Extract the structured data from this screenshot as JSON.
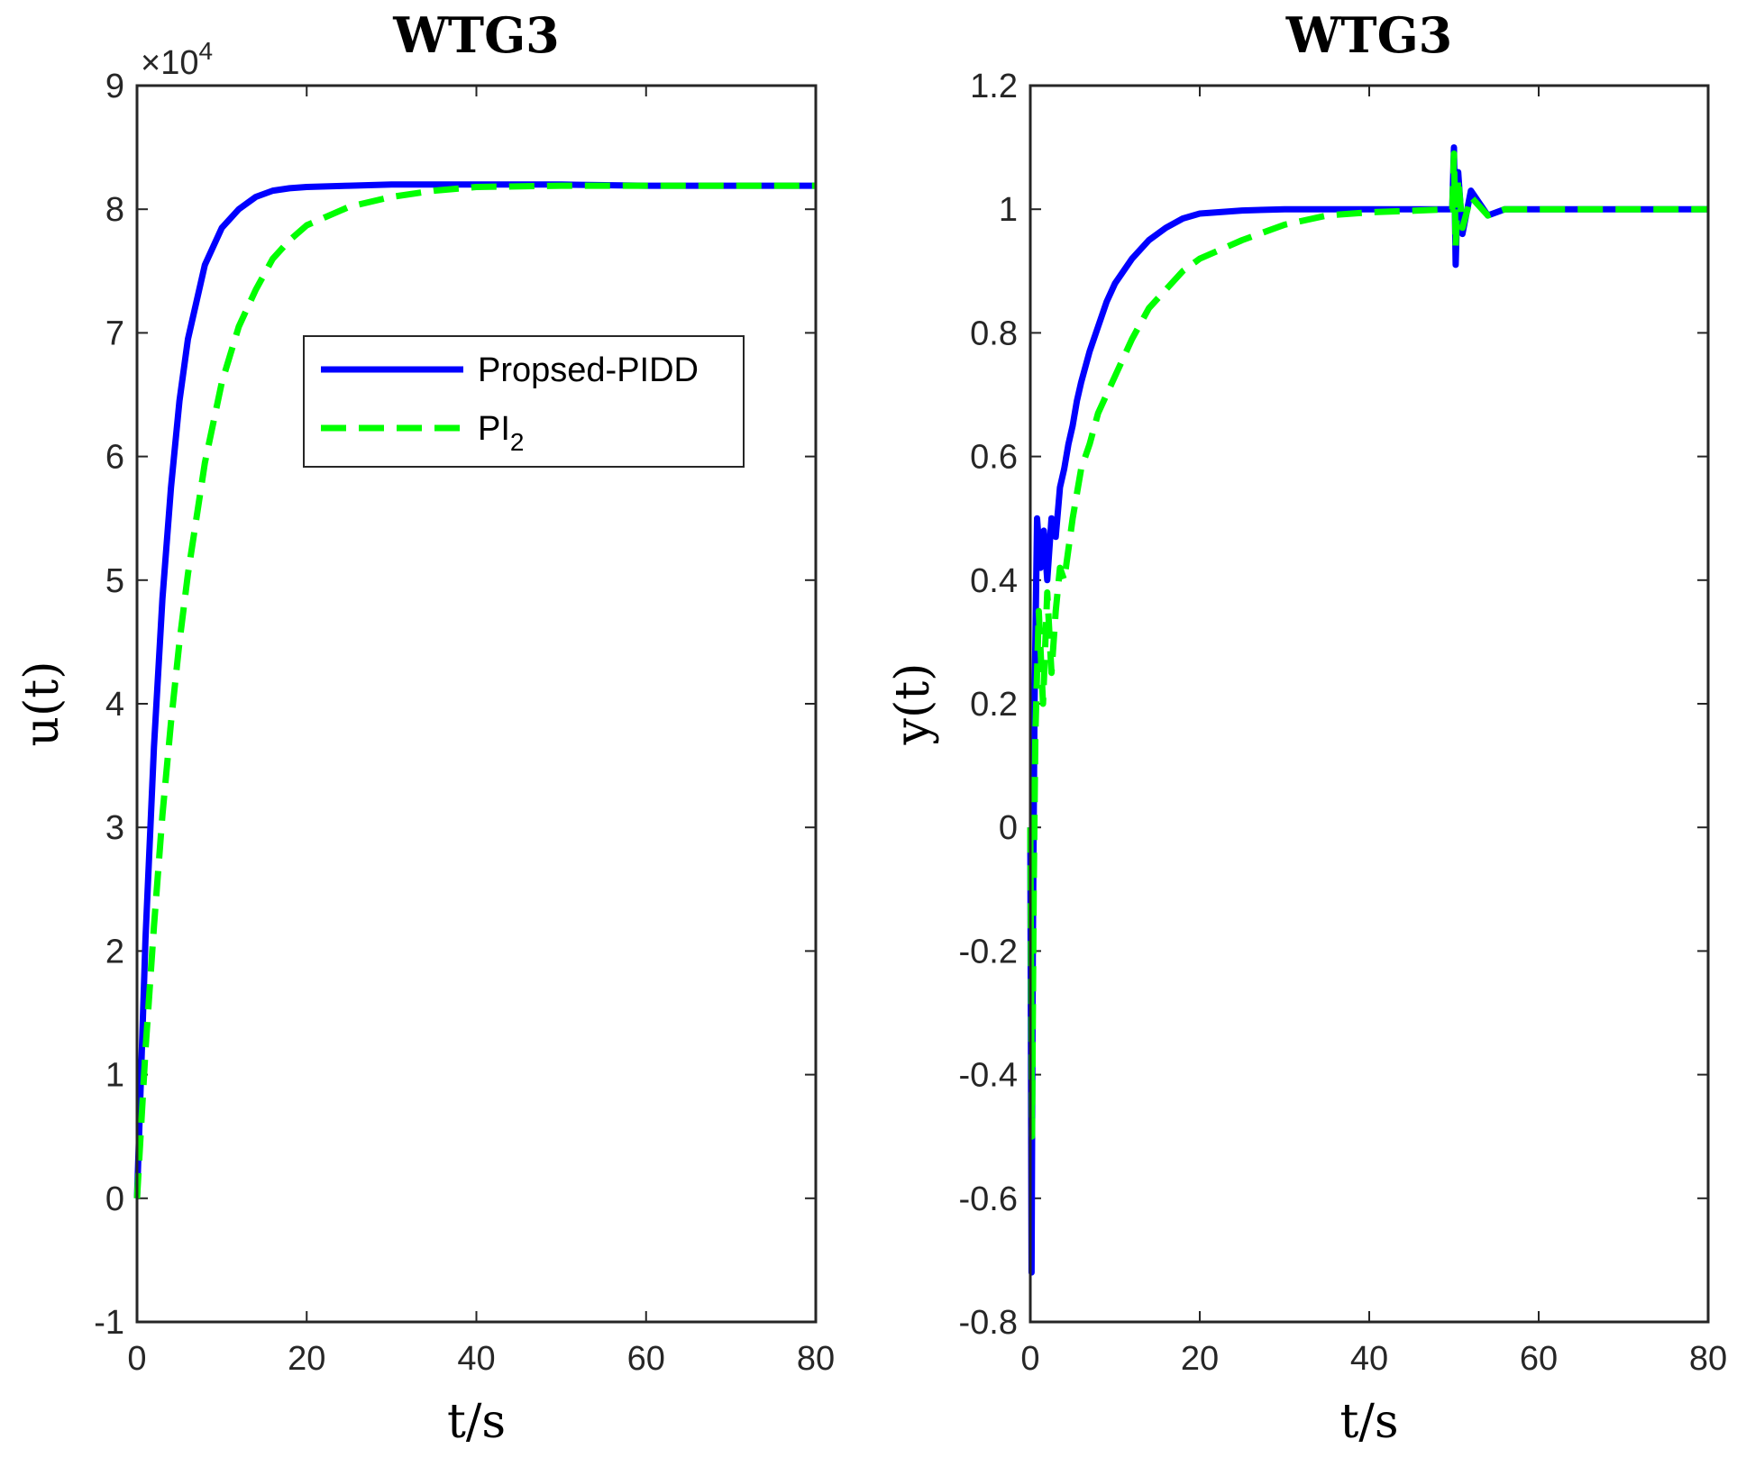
{
  "chart_data": [
    {
      "type": "line",
      "title": "WTG3",
      "xlabel": "t/s",
      "ylabel": "u(t)",
      "xlim": [
        0,
        80
      ],
      "ylim": [
        -1,
        9
      ],
      "xticks": [
        "0",
        "20",
        "40",
        "60",
        "80"
      ],
      "yticks": [
        "-1",
        "0",
        "1",
        "2",
        "3",
        "4",
        "5",
        "6",
        "7",
        "8",
        "9"
      ],
      "y_exponent_base": "×10",
      "y_exponent_power": "4",
      "legend": {
        "position": "center",
        "entries": [
          {
            "label": "Propsed-PIDD",
            "color": "#0000ff",
            "style": "solid"
          },
          {
            "label_main": "PI",
            "label_sub": "2",
            "color": "#00ff00",
            "style": "dashed"
          }
        ]
      },
      "series": [
        {
          "name": "Propsed-PIDD",
          "color": "#0000ff",
          "style": "solid",
          "x": [
            0,
            1,
            2,
            3,
            4,
            5,
            6,
            8,
            10,
            12,
            14,
            16,
            18,
            20,
            25,
            30,
            40,
            50,
            60,
            70,
            80
          ],
          "y": [
            0,
            2.1,
            3.65,
            4.85,
            5.75,
            6.45,
            6.95,
            7.55,
            7.85,
            8.0,
            8.1,
            8.15,
            8.17,
            8.18,
            8.19,
            8.2,
            8.2,
            8.2,
            8.19,
            8.19,
            8.19
          ]
        },
        {
          "name": "PI2",
          "color": "#00ff00",
          "style": "dashed",
          "x": [
            0,
            1,
            2,
            3,
            4,
            5,
            6,
            8,
            10,
            12,
            14,
            16,
            18,
            20,
            25,
            30,
            35,
            40,
            50,
            60,
            70,
            80
          ],
          "y": [
            0,
            1.2,
            2.2,
            3.1,
            3.85,
            4.5,
            5.05,
            5.95,
            6.6,
            7.05,
            7.35,
            7.6,
            7.75,
            7.87,
            8.02,
            8.1,
            8.15,
            8.18,
            8.19,
            8.19,
            8.19,
            8.19
          ]
        }
      ]
    },
    {
      "type": "line",
      "title": "WTG3",
      "xlabel": "t/s",
      "ylabel": "y(t)",
      "xlim": [
        0,
        80
      ],
      "ylim": [
        -0.8,
        1.2
      ],
      "xticks": [
        "0",
        "20",
        "40",
        "60",
        "80"
      ],
      "yticks": [
        "-0.8",
        "-0.6",
        "-0.4",
        "-0.2",
        "0",
        "0.2",
        "0.4",
        "0.6",
        "0.8",
        "1",
        "1.2"
      ],
      "series": [
        {
          "name": "Propsed-PIDD",
          "color": "#0000ff",
          "style": "solid",
          "x": [
            0,
            0.15,
            0.3,
            0.5,
            0.8,
            1.2,
            1.6,
            2.0,
            2.5,
            3.0,
            3.5,
            4.0,
            4.5,
            5.0,
            5.5,
            6.0,
            7.0,
            8.0,
            9.0,
            10.0,
            12.0,
            14.0,
            16.0,
            18.0,
            20.0,
            25.0,
            30.0,
            40.0,
            49.8,
            50.0,
            50.2,
            50.5,
            51.0,
            52.0,
            54.0,
            56.0,
            60.0,
            70.0,
            80.0
          ],
          "y": [
            0,
            -0.72,
            -0.2,
            0.2,
            0.5,
            0.42,
            0.48,
            0.4,
            0.5,
            0.47,
            0.55,
            0.58,
            0.62,
            0.65,
            0.69,
            0.72,
            0.77,
            0.81,
            0.85,
            0.88,
            0.92,
            0.95,
            0.97,
            0.985,
            0.993,
            0.998,
            1.0,
            1.0,
            1.0,
            1.1,
            0.91,
            1.06,
            0.96,
            1.03,
            0.99,
            1.0,
            1.0,
            1.0,
            1.0
          ]
        },
        {
          "name": "PI2",
          "color": "#00ff00",
          "style": "dashed",
          "x": [
            0,
            0.2,
            0.4,
            0.6,
            1.0,
            1.5,
            2.0,
            2.5,
            3.0,
            3.5,
            4.0,
            5.0,
            6.0,
            7.0,
            8.0,
            9.0,
            10.0,
            12.0,
            14.0,
            16.0,
            18.0,
            20.0,
            25.0,
            30.0,
            35.0,
            40.0,
            49.8,
            50.0,
            50.2,
            50.5,
            51.0,
            52.0,
            54.0,
            56.0,
            60.0,
            70.0,
            80.0
          ],
          "y": [
            0,
            -0.5,
            -0.1,
            0.15,
            0.35,
            0.2,
            0.38,
            0.25,
            0.35,
            0.42,
            0.4,
            0.5,
            0.58,
            0.62,
            0.67,
            0.7,
            0.73,
            0.79,
            0.84,
            0.87,
            0.9,
            0.92,
            0.95,
            0.975,
            0.99,
            0.995,
            1.0,
            1.09,
            0.94,
            1.05,
            0.97,
            1.02,
            0.99,
            1.0,
            1.0,
            1.0,
            1.0
          ]
        }
      ]
    }
  ]
}
